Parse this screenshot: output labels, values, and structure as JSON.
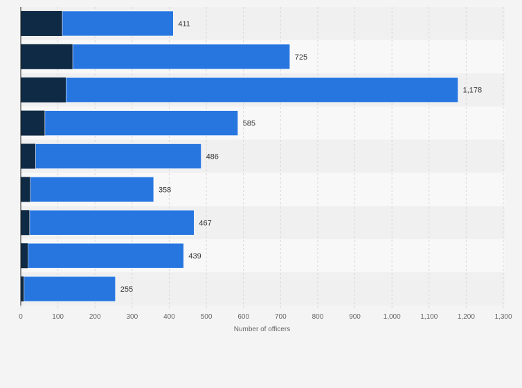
{
  "chart_data": {
    "type": "bar",
    "orientation": "horizontal",
    "stacked": true,
    "categories": [
      "",
      "",
      "",
      "",
      "",
      "",
      "",
      "",
      ""
    ],
    "series": [
      {
        "values": [
          112,
          140,
          122,
          65,
          40,
          26,
          24,
          20,
          9
        ],
        "color": "#0f2a44"
      },
      {
        "values": [
          299,
          585,
          1056,
          520,
          446,
          332,
          443,
          419,
          246
        ],
        "color": "#2776e0"
      }
    ],
    "totals": [
      411,
      725,
      1178,
      585,
      486,
      358,
      467,
      439,
      255
    ],
    "total_labels": [
      "411",
      "725",
      "1,178",
      "585",
      "486",
      "358",
      "467",
      "439",
      "255"
    ],
    "xlim": [
      0,
      1300
    ],
    "xticks": [
      0,
      100,
      200,
      300,
      400,
      500,
      600,
      700,
      800,
      900,
      1000,
      1100,
      1200,
      1300
    ],
    "xtick_labels": [
      "0",
      "100",
      "200",
      "300",
      "400",
      "500",
      "600",
      "700",
      "800",
      "900",
      "1,000",
      "1,100",
      "1,200",
      "1,300"
    ],
    "xlabel": "Number of officers",
    "ylabel": "",
    "grid": true,
    "legend": "none"
  },
  "colors": {
    "page_background": "#f4f4f4",
    "band_dark": "#f0f0f0",
    "band_light": "#f8f8f8",
    "gridline": "#d9d9d9",
    "axis_line": "#222222"
  }
}
